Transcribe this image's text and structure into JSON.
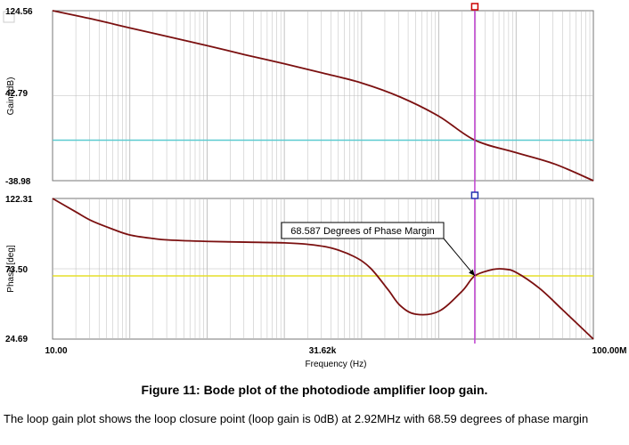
{
  "chart_data": {
    "type": "line",
    "xlabel": "Frequency (Hz)",
    "x_scale": "log",
    "x_range": [
      10,
      100000000
    ],
    "x_ticks": [
      "10.00",
      "31.62k",
      "100.00M"
    ],
    "marker_frequency": 2920000,
    "panels": [
      {
        "id": "gain",
        "ylabel": "Gain (dB)",
        "ylim": [
          -38.98,
          124.56
        ],
        "y_ticks": [
          "124.56",
          "42.79",
          "-38.98"
        ],
        "reference_level": 0,
        "series": [
          {
            "x": [
              10,
              31.6,
              100,
              316,
              1000,
              3162,
              10000,
              31620,
              100000,
              316200,
              1000000,
              2920000,
              10000000,
              31620000,
              100000000
            ],
            "values": [
              124.56,
              116.7,
              108,
              99.5,
              91,
              82,
              73.5,
              64.5,
              55,
              41.5,
              23,
              0,
              -12,
              -23,
              -38.98
            ]
          }
        ]
      },
      {
        "id": "phase",
        "ylabel": "Phase [deg]",
        "ylim": [
          24.69,
          122.31
        ],
        "y_ticks": [
          "122.31",
          "73.50",
          "24.69"
        ],
        "reference_level": 68.587,
        "series": [
          {
            "x": [
              10,
              20,
              31.6,
              60,
              100,
              200,
              316,
              1000,
              3162,
              10000,
              20000,
              40000,
              80000,
              130000,
              220000,
              316000,
              500000,
              1000000,
              2000000,
              2920000,
              5000000,
              7000000,
              10000000,
              20000000,
              40000000,
              100000000
            ],
            "values": [
              122.31,
              113,
              107,
              101,
              97,
              94.5,
              93.5,
              92.5,
              92,
              91.5,
              90.5,
              88,
              82,
              74,
              59,
              48,
              42,
              44,
              58,
              68.587,
              73,
              73.3,
              71,
              60,
              45,
              24.69
            ]
          }
        ]
      }
    ],
    "annotation": "68.587 Degrees of Phase Margin"
  },
  "caption": "Figure 11: Bode plot of the photodiode amplifier loop gain.",
  "body_text": "The loop gain plot shows the loop closure point (loop gain is 0dB) at 2.92MHz with 68.59 degrees of phase margin",
  "colors": {
    "curve": "#7b1010",
    "gain_reference": "#5ccbd0",
    "phase_reference": "#e6df2a",
    "cursor": "#c040d0",
    "grid": "#bbbbbb",
    "cursor_box_top": "#cc0000",
    "cursor_box_bottom": "#2030b0"
  }
}
